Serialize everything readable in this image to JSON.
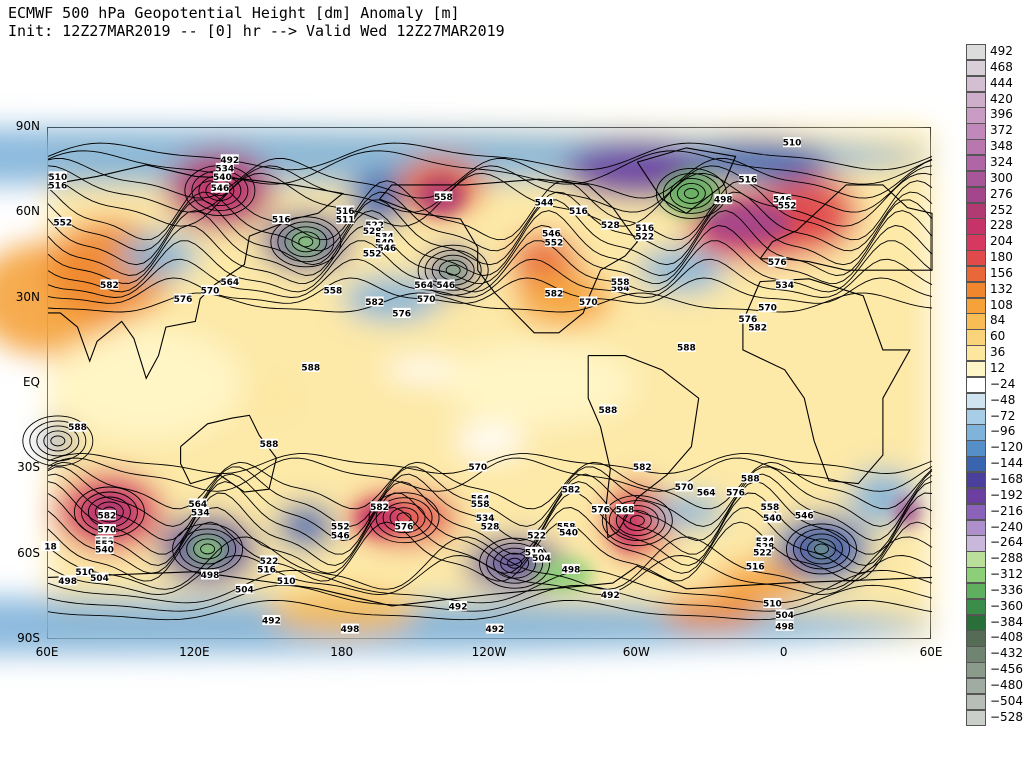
{
  "header": {
    "line1": "ECMWF 500 hPa Geopotential Height [dm] Anomaly [m]",
    "line2": "Init: 12Z27MAR2019 -- [0] hr --> Valid Wed 12Z27MAR2019"
  },
  "axes": {
    "lat_labels": [
      "90N",
      "60N",
      "30N",
      "EQ",
      "30S",
      "60S",
      "90S"
    ],
    "lat_values": [
      90,
      60,
      30,
      0,
      -30,
      -60,
      -90
    ],
    "lon_labels": [
      "60E",
      "120E",
      "180",
      "120W",
      "60W",
      "0",
      "60E"
    ],
    "lon_values": [
      60,
      120,
      180,
      240,
      300,
      360,
      420
    ]
  },
  "colorbar": {
    "levels": [
      "492",
      "468",
      "444",
      "420",
      "396",
      "372",
      "348",
      "324",
      "300",
      "276",
      "252",
      "228",
      "204",
      "180",
      "156",
      "132",
      "108",
      "84",
      "60",
      "36",
      "12",
      "−24",
      "−48",
      "−72",
      "−96",
      "−120",
      "−144",
      "−168",
      "−192",
      "−216",
      "−240",
      "−264",
      "−288",
      "−312",
      "−336",
      "−360",
      "−384",
      "−408",
      "−432",
      "−456",
      "−480",
      "−504",
      "−528"
    ],
    "colors": [
      "#dcdcdc",
      "#d8cfd8",
      "#d4bfd2",
      "#ceaecb",
      "#c89cc3",
      "#c189bb",
      "#b977b0",
      "#b066a6",
      "#a8569a",
      "#a3468c",
      "#b13a72",
      "#c53368",
      "#d63860",
      "#e04a4a",
      "#e8683a",
      "#f0862e",
      "#f5a23a",
      "#f9bd56",
      "#fbd37a",
      "#fde69e",
      "#fff6c8",
      "#ffffff",
      "#cfe3f0",
      "#a8cde6",
      "#7fb3da",
      "#568fc8",
      "#3a64b0",
      "#4a3f9c",
      "#6a3fa0",
      "#8a63b8",
      "#ad8fcc",
      "#c9b8dc",
      "#b9df9a",
      "#8ccf78",
      "#5fb05e",
      "#3a8e4a",
      "#2a6e3a",
      "#556b55",
      "#6f8471",
      "#8a9a8b",
      "#a0aca1",
      "#b6beb7",
      "#cacfca"
    ]
  },
  "contour_labels": [
    {
      "t": "510",
      "lon": 64,
      "lat": 73
    },
    {
      "t": "516",
      "lon": 64,
      "lat": 70
    },
    {
      "t": "552",
      "lon": 66,
      "lat": 57
    },
    {
      "t": "582",
      "lon": 85,
      "lat": 35
    },
    {
      "t": "492",
      "lon": 134,
      "lat": 79
    },
    {
      "t": "534",
      "lon": 132,
      "lat": 76
    },
    {
      "t": "540",
      "lon": 131,
      "lat": 73
    },
    {
      "t": "546",
      "lon": 130,
      "lat": 69
    },
    {
      "t": "576",
      "lon": 115,
      "lat": 30
    },
    {
      "t": "570",
      "lon": 126,
      "lat": 33
    },
    {
      "t": "564",
      "lon": 134,
      "lat": 36
    },
    {
      "t": "516",
      "lon": 155,
      "lat": 58
    },
    {
      "t": "516",
      "lon": 181,
      "lat": 61
    },
    {
      "t": "511",
      "lon": 181,
      "lat": 58
    },
    {
      "t": "522",
      "lon": 193,
      "lat": 56
    },
    {
      "t": "528",
      "lon": 192,
      "lat": 54
    },
    {
      "t": "534",
      "lon": 197,
      "lat": 52
    },
    {
      "t": "540",
      "lon": 197,
      "lat": 50
    },
    {
      "t": "546",
      "lon": 198,
      "lat": 48
    },
    {
      "t": "552",
      "lon": 192,
      "lat": 46
    },
    {
      "t": "558",
      "lon": 176,
      "lat": 33
    },
    {
      "t": "582",
      "lon": 193,
      "lat": 29
    },
    {
      "t": "576",
      "lon": 204,
      "lat": 25
    },
    {
      "t": "570",
      "lon": 214,
      "lat": 30
    },
    {
      "t": "564",
      "lon": 213,
      "lat": 35
    },
    {
      "t": "546",
      "lon": 222,
      "lat": 35
    },
    {
      "t": "558",
      "lon": 221,
      "lat": 66
    },
    {
      "t": "582",
      "lon": 266,
      "lat": 32
    },
    {
      "t": "570",
      "lon": 280,
      "lat": 29
    },
    {
      "t": "564",
      "lon": 293,
      "lat": 34
    },
    {
      "t": "558",
      "lon": 293,
      "lat": 36
    },
    {
      "t": "544",
      "lon": 262,
      "lat": 64
    },
    {
      "t": "516",
      "lon": 276,
      "lat": 61
    },
    {
      "t": "528",
      "lon": 289,
      "lat": 56
    },
    {
      "t": "546",
      "lon": 265,
      "lat": 53
    },
    {
      "t": "552",
      "lon": 266,
      "lat": 50
    },
    {
      "t": "522",
      "lon": 303,
      "lat": 52
    },
    {
      "t": "516",
      "lon": 303,
      "lat": 55
    },
    {
      "t": "498",
      "lon": 335,
      "lat": 65
    },
    {
      "t": "516",
      "lon": 345,
      "lat": 72
    },
    {
      "t": "510",
      "lon": 363,
      "lat": 85
    },
    {
      "t": "546",
      "lon": 359,
      "lat": 65
    },
    {
      "t": "552",
      "lon": 361,
      "lat": 63
    },
    {
      "t": "576",
      "lon": 357,
      "lat": 43
    },
    {
      "t": "534",
      "lon": 360,
      "lat": 35
    },
    {
      "t": "570",
      "lon": 353,
      "lat": 27
    },
    {
      "t": "576",
      "lon": 345,
      "lat": 23
    },
    {
      "t": "582",
      "lon": 349,
      "lat": 20
    },
    {
      "t": "588",
      "lon": 320,
      "lat": 13
    },
    {
      "t": "588",
      "lon": 167,
      "lat": 6
    },
    {
      "t": "588",
      "lon": 72,
      "lat": -15
    },
    {
      "t": "588",
      "lon": 150,
      "lat": -21
    },
    {
      "t": "588",
      "lon": 288,
      "lat": -9
    },
    {
      "t": "570",
      "lon": 235,
      "lat": -29
    },
    {
      "t": "582",
      "lon": 302,
      "lat": -29
    },
    {
      "t": "588",
      "lon": 346,
      "lat": -33
    },
    {
      "t": "582",
      "lon": 273,
      "lat": -37
    },
    {
      "t": "570",
      "lon": 319,
      "lat": -36
    },
    {
      "t": "564",
      "lon": 328,
      "lat": -38
    },
    {
      "t": "576",
      "lon": 340,
      "lat": -38
    },
    {
      "t": "582",
      "lon": 84,
      "lat": -46
    },
    {
      "t": "570",
      "lon": 84,
      "lat": -51
    },
    {
      "t": "558",
      "lon": 83,
      "lat": -55
    },
    {
      "t": "552",
      "lon": 83,
      "lat": -56
    },
    {
      "t": "540",
      "lon": 83,
      "lat": -58
    },
    {
      "t": "564",
      "lon": 121,
      "lat": -42
    },
    {
      "t": "534",
      "lon": 122,
      "lat": -45
    },
    {
      "t": "498",
      "lon": 126,
      "lat": -67
    },
    {
      "t": "510",
      "lon": 75,
      "lat": -66
    },
    {
      "t": "504",
      "lon": 81,
      "lat": -68
    },
    {
      "t": "498",
      "lon": 68,
      "lat": -69
    },
    {
      "t": "522",
      "lon": 150,
      "lat": -62
    },
    {
      "t": "516",
      "lon": 149,
      "lat": -65
    },
    {
      "t": "510",
      "lon": 157,
      "lat": -69
    },
    {
      "t": "504",
      "lon": 140,
      "lat": -72
    },
    {
      "t": "552",
      "lon": 179,
      "lat": -50
    },
    {
      "t": "546",
      "lon": 179,
      "lat": -53
    },
    {
      "t": "582",
      "lon": 195,
      "lat": -43
    },
    {
      "t": "576",
      "lon": 205,
      "lat": -50
    },
    {
      "t": "564",
      "lon": 236,
      "lat": -40
    },
    {
      "t": "558",
      "lon": 236,
      "lat": -42
    },
    {
      "t": "534",
      "lon": 238,
      "lat": -47
    },
    {
      "t": "528",
      "lon": 240,
      "lat": -50
    },
    {
      "t": "522",
      "lon": 259,
      "lat": -53
    },
    {
      "t": "510",
      "lon": 258,
      "lat": -59
    },
    {
      "t": "504",
      "lon": 261,
      "lat": -61
    },
    {
      "t": "498",
      "lon": 273,
      "lat": -65
    },
    {
      "t": "576",
      "lon": 285,
      "lat": -44
    },
    {
      "t": "576",
      "lon": 295,
      "lat": -44
    },
    {
      "t": "558",
      "lon": 271,
      "lat": -50
    },
    {
      "t": "540",
      "lon": 272,
      "lat": -52
    },
    {
      "t": "492",
      "lon": 289,
      "lat": -74
    },
    {
      "t": "492",
      "lon": 227,
      "lat": -78
    },
    {
      "t": "492",
      "lon": 242,
      "lat": -86
    },
    {
      "t": "492",
      "lon": 151,
      "lat": -83
    },
    {
      "t": "498",
      "lon": 183,
      "lat": -86
    },
    {
      "t": "558",
      "lon": 354,
      "lat": -43
    },
    {
      "t": "540",
      "lon": 355,
      "lat": -47
    },
    {
      "t": "546",
      "lon": 368,
      "lat": -46
    },
    {
      "t": "534",
      "lon": 352,
      "lat": -55
    },
    {
      "t": "528",
      "lon": 352,
      "lat": -57
    },
    {
      "t": "522",
      "lon": 351,
      "lat": -59
    },
    {
      "t": "516",
      "lon": 348,
      "lat": -64
    },
    {
      "t": "510",
      "lon": 355,
      "lat": -77
    },
    {
      "t": "504",
      "lon": 360,
      "lat": -81
    },
    {
      "t": "498",
      "lon": 360,
      "lat": -85
    },
    {
      "t": "18",
      "lon": 61,
      "lat": -57
    },
    {
      "t": "568",
      "lon": 295,
      "lat": -44
    }
  ]
}
